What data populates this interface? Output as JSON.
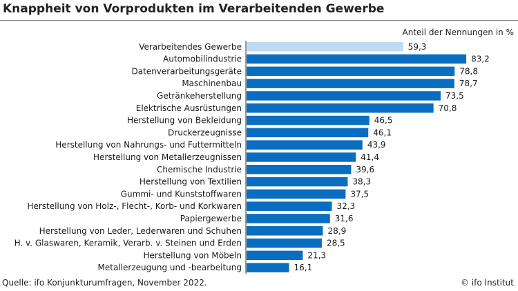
{
  "chart_data": {
    "type": "bar",
    "orientation": "horizontal",
    "title": "Knappheit von Vorprodukten im Verarbeitenden Gewerbe",
    "unit_label": "Anteil der Nennungen in %",
    "categories": [
      "Verarbeitendes Gewerbe",
      "Automobilindustrie",
      "Datenverarbeitungsgeräte",
      "Maschinenbau",
      "Getränkeherstellung",
      "Elektrische Ausrüstungen",
      "Herstellung von Bekleidung",
      "Druckerzeugnisse",
      "Herstellung von Nahrungs- und Futtermitteln",
      "Herstellung von Metallerzeugnissen",
      "Chemische Industrie",
      "Herstellung von Textilien",
      "Gummi- und Kunststoffwaren",
      "Herstellung von Holz-, Flecht-, Korb- und Korkwaren",
      "Papiergewerbe",
      "Herstellung von Leder, Lederwaren und Schuhen",
      "H. v. Glaswaren, Keramik, Verarb. v. Steinen und Erden",
      "Herstellung von Möbeln",
      "Metallerzeugung und -bearbeitung"
    ],
    "values": [
      59.3,
      83.2,
      78.8,
      78.7,
      73.5,
      70.8,
      46.5,
      46.1,
      43.9,
      41.4,
      39.6,
      38.3,
      37.5,
      32.3,
      31.6,
      28.9,
      28.5,
      21.3,
      16.1
    ],
    "value_labels": [
      "59,3",
      "83,2",
      "78,8",
      "78,7",
      "73,5",
      "70,8",
      "46,5",
      "46,1",
      "43,9",
      "41,4",
      "39,6",
      "38,3",
      "37,5",
      "32,3",
      "31,6",
      "28,9",
      "28,5",
      "21,3",
      "16,1"
    ],
    "xlim": [
      0,
      100
    ],
    "grid": false,
    "colors": {
      "highlight": "#bcdcf3",
      "bar": "#0a6ec0",
      "axis": "#333333"
    }
  },
  "source": "Quelle: ifo Konjunkturumfragen, November 2022.",
  "credit": "© ifo Institut"
}
